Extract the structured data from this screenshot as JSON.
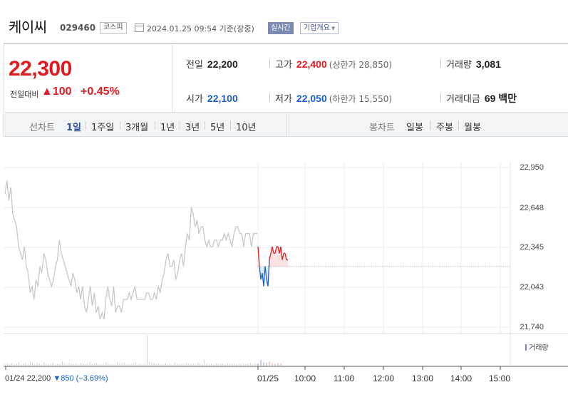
{
  "header": {
    "name": "케이씨",
    "code": "029460",
    "market": "코스피",
    "datetime": "2024.01.25 09:54 기준(장중)",
    "realtime_label": "실시간",
    "overview_label": "기업개요"
  },
  "summary": {
    "price": "22,300",
    "change_label": "전일대비",
    "change": "▲100",
    "change_pct": "+0.45%",
    "prev_close": {
      "label": "전일",
      "value": "22,200"
    },
    "high": {
      "label": "고가",
      "value": "22,400",
      "sub": "(상한가 28,850)"
    },
    "volume": {
      "label": "거래량",
      "value": "3,081"
    },
    "open": {
      "label": "시가",
      "value": "22,100"
    },
    "low": {
      "label": "저가",
      "value": "22,050",
      "sub": "(하한가 15,550)"
    },
    "trade_value": {
      "label": "거래대금",
      "value": "69 백만"
    }
  },
  "tabs": {
    "line_label": "선차트",
    "periods": [
      "1일",
      "1주일",
      "3개월",
      "1년",
      "3년",
      "5년",
      "10년"
    ],
    "active": "1일",
    "candle_label": "봉차트",
    "candles": [
      "일봉",
      "주봉",
      "월봉"
    ]
  },
  "colors": {
    "up": "#e01b22",
    "down": "#1a5ec7",
    "prev_day": "#c8c8c8"
  },
  "chart_data": {
    "type": "line",
    "y_ticks": [
      "22,950",
      "22,648",
      "22,345",
      "22,043",
      "21,740"
    ],
    "ylim": [
      21740,
      22950
    ],
    "x_ticks": [
      "01/24",
      "01/25",
      "10:00",
      "11:00",
      "12:00",
      "13:00",
      "14:00",
      "15:00"
    ],
    "volume_label": "거래량",
    "previous_day_note": {
      "date": "01/24",
      "price": "22,200",
      "change": "▼850",
      "pct": "(−3.69%)"
    },
    "baseline": 22200,
    "series": [
      {
        "values": [
          22750,
          22850,
          22700,
          22800,
          22600,
          22550,
          22500,
          22350,
          22300,
          22250,
          22350,
          22200,
          22150,
          22000,
          22050,
          21950,
          22100,
          22050,
          22200,
          22150,
          22300,
          22250,
          22150,
          22100,
          22050,
          22100,
          22200,
          22250,
          22400,
          22300,
          22250,
          22200,
          22150,
          22100,
          22050,
          22150,
          22100,
          22000,
          22050,
          21950,
          22050,
          21900,
          21850,
          21950,
          22050,
          21900,
          22000,
          21850,
          21900,
          21800,
          21850,
          21800,
          21950,
          22050,
          21950,
          21900,
          22050,
          21850,
          21900,
          21900,
          21850,
          21950,
          21950,
          21950,
          22000,
          21950,
          22000,
          22050,
          21950,
          21950,
          21950,
          21950,
          21950,
          22000,
          22000,
          21950,
          21950,
          22000,
          21950,
          22050,
          22000,
          22100,
          22150,
          22250,
          22300,
          22200,
          22200,
          22250,
          22100,
          22150,
          22250,
          22300,
          22200,
          22350,
          22450,
          22400,
          22650,
          22600,
          22500,
          22550,
          22450,
          22500,
          22500,
          22400,
          22350,
          22400,
          22350,
          22350,
          22400,
          22400,
          22350,
          22400,
          22400,
          22450,
          22400,
          22450,
          22400,
          22350,
          22450,
          22500,
          22500,
          22450,
          22450,
          22350,
          22450,
          22450,
          22450,
          22350,
          22450,
          22450,
          22450
        ]
      },
      {
        "values": [
          22350,
          22200,
          22100,
          22150,
          22050,
          22200,
          22100,
          22050,
          22250,
          22300,
          22350,
          22300,
          22300,
          22350,
          22350,
          22300,
          22350,
          22250,
          22300,
          22300,
          22250,
          22250
        ]
      }
    ]
  }
}
